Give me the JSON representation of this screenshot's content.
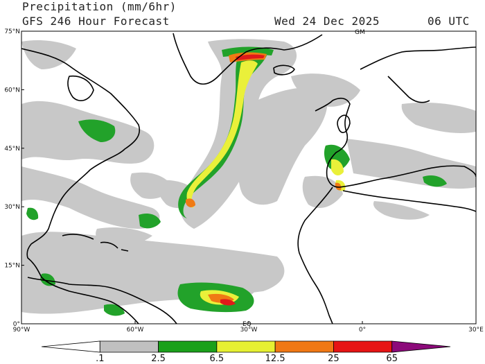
{
  "header": {
    "title": "Precipitation (mm/6hr)",
    "subtitle": "GFS 246 Hour Forecast",
    "date": "Wed 24 Dec 2025",
    "time": "06 UTC"
  },
  "axes": {
    "lat_labels": [
      "75°N",
      "60°N",
      "45°N",
      "30°N",
      "15°N",
      "0°"
    ],
    "lon_labels": [
      "90°W",
      "60°W",
      "30°W",
      "0°",
      "30°E"
    ],
    "lon_range": [
      -90,
      30
    ],
    "lat_range": [
      0,
      75
    ]
  },
  "map_labels": {
    "greenwich_marker": "GM",
    "equator_marker": "EQ"
  },
  "colorbar": {
    "labels": [
      ".1",
      "2.5",
      "6.5",
      "12.5",
      "25",
      "65"
    ],
    "colors": [
      "#ffffff",
      "#c0c0c0",
      "#1aa01a",
      "#e6f032",
      "#f07814",
      "#e61414",
      "#8c0a7a"
    ]
  },
  "colors": {
    "light_precip": "#c8c8c8",
    "moderate": "#22a22a",
    "heavy": "#eaf03a",
    "very_heavy": "#f07a14",
    "extreme": "#e01a1a",
    "coast": "#000000"
  }
}
